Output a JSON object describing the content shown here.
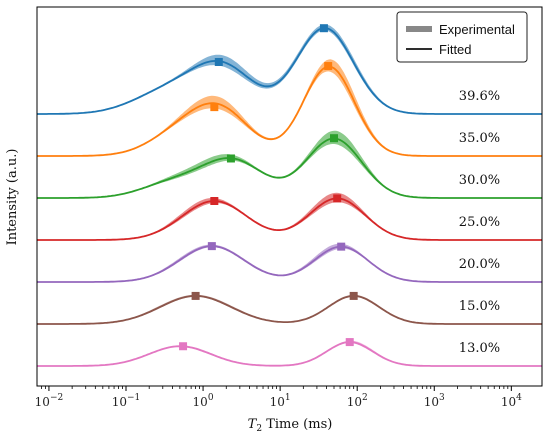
{
  "chart_data": {
    "type": "line",
    "xlabel": {
      "symbol": "T",
      "sub": "2",
      "text": " Time (ms)"
    },
    "ylabel": "Intensity (a.u.)",
    "x_scale": "log",
    "xlim": [
      0.007,
      25000
    ],
    "x_ticks": [
      {
        "value": 0.01,
        "base": "10",
        "exp": "−2"
      },
      {
        "value": 0.1,
        "base": "10",
        "exp": "−1"
      },
      {
        "value": 1,
        "base": "10",
        "exp": "0"
      },
      {
        "value": 10,
        "base": "10",
        "exp": "1"
      },
      {
        "value": 100,
        "base": "10",
        "exp": "2"
      },
      {
        "value": 1000,
        "base": "10",
        "exp": "3"
      },
      {
        "value": 10000,
        "base": "10",
        "exp": "4"
      }
    ],
    "y_ticks_shown": false,
    "grid": false,
    "legend": {
      "position": "top-right",
      "entries": [
        {
          "label": "Experimental",
          "style": "thick-gray"
        },
        {
          "label": "Fitted",
          "style": "thin-black"
        }
      ]
    },
    "series": [
      {
        "name": "39.6%",
        "color": "#1f77b4",
        "peaks": [
          {
            "t": 1.6,
            "h": 1.0
          },
          {
            "t": 37,
            "h": 1.65
          }
        ],
        "components": [
          {
            "t": 0.35,
            "a": 0.42,
            "s": 0.45
          },
          {
            "t": 1.8,
            "a": 0.88,
            "s": 0.4
          },
          {
            "t": 38,
            "a": 1.65,
            "s": 0.37
          }
        ]
      },
      {
        "name": "35.0%",
        "color": "#ff7f0e",
        "peaks": [
          {
            "t": 1.4,
            "h": 0.94
          },
          {
            "t": 42,
            "h": 1.73
          }
        ],
        "components": [
          {
            "t": 0.5,
            "a": 0.4,
            "s": 0.4
          },
          {
            "t": 1.7,
            "a": 0.82,
            "s": 0.38
          },
          {
            "t": 43,
            "a": 1.72,
            "s": 0.33
          }
        ]
      },
      {
        "name": "30.0%",
        "color": "#2ca02c",
        "peaks": [
          {
            "t": 2.3,
            "h": 0.76
          },
          {
            "t": 50,
            "h": 1.15
          }
        ],
        "components": [
          {
            "t": 0.4,
            "a": 0.28,
            "s": 0.4
          },
          {
            "t": 2.4,
            "a": 0.72,
            "s": 0.4
          },
          {
            "t": 50,
            "a": 1.14,
            "s": 0.36
          }
        ]
      },
      {
        "name": "25.0%",
        "color": "#d62728",
        "peaks": [
          {
            "t": 1.4,
            "h": 0.75
          },
          {
            "t": 55,
            "h": 0.8
          }
        ],
        "components": [
          {
            "t": 1.4,
            "a": 0.75,
            "s": 0.42
          },
          {
            "t": 55,
            "a": 0.8,
            "s": 0.36
          }
        ]
      },
      {
        "name": "20.0%",
        "color": "#9467bd",
        "peaks": [
          {
            "t": 1.3,
            "h": 0.69
          },
          {
            "t": 62,
            "h": 0.68
          }
        ],
        "components": [
          {
            "t": 1.3,
            "a": 0.69,
            "s": 0.42
          },
          {
            "t": 62,
            "a": 0.68,
            "s": 0.35
          }
        ]
      },
      {
        "name": "15.0%",
        "color": "#8c564b",
        "peaks": [
          {
            "t": 0.8,
            "h": 0.54
          },
          {
            "t": 90,
            "h": 0.54
          }
        ],
        "components": [
          {
            "t": 0.8,
            "a": 0.54,
            "s": 0.46
          },
          {
            "t": 90,
            "a": 0.54,
            "s": 0.33
          }
        ]
      },
      {
        "name": "13.0%",
        "color": "#e377c2",
        "peaks": [
          {
            "t": 0.55,
            "h": 0.38
          },
          {
            "t": 80,
            "h": 0.46
          }
        ],
        "components": [
          {
            "t": 0.5,
            "a": 0.38,
            "s": 0.4
          },
          {
            "t": 80,
            "a": 0.46,
            "s": 0.3
          }
        ]
      }
    ]
  }
}
